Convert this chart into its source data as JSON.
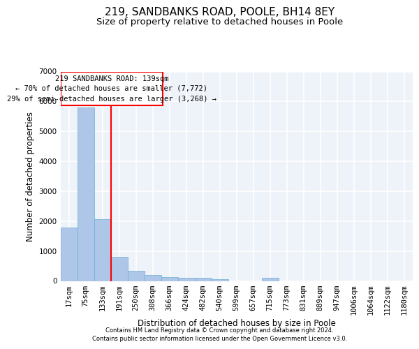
{
  "title": "219, SANDBANKS ROAD, POOLE, BH14 8EY",
  "subtitle": "Size of property relative to detached houses in Poole",
  "xlabel": "Distribution of detached houses by size in Poole",
  "ylabel": "Number of detached properties",
  "bar_color": "#aec6e8",
  "bar_edge_color": "#6baed6",
  "categories": [
    "17sqm",
    "75sqm",
    "133sqm",
    "191sqm",
    "250sqm",
    "308sqm",
    "366sqm",
    "424sqm",
    "482sqm",
    "540sqm",
    "599sqm",
    "657sqm",
    "715sqm",
    "773sqm",
    "831sqm",
    "889sqm",
    "947sqm",
    "1006sqm",
    "1064sqm",
    "1122sqm",
    "1180sqm"
  ],
  "values": [
    1780,
    5800,
    2060,
    800,
    340,
    200,
    130,
    115,
    100,
    65,
    0,
    0,
    95,
    0,
    0,
    0,
    0,
    0,
    0,
    0,
    0
  ],
  "ylim": [
    0,
    7000
  ],
  "yticks": [
    0,
    1000,
    2000,
    3000,
    4000,
    5000,
    6000,
    7000
  ],
  "annotation_title": "219 SANDBANKS ROAD: 139sqm",
  "annotation_line1": "← 70% of detached houses are smaller (7,772)",
  "annotation_line2": "29% of semi-detached houses are larger (3,268) →",
  "vline_x": 2.5,
  "footer1": "Contains HM Land Registry data © Crown copyright and database right 2024.",
  "footer2": "Contains public sector information licensed under the Open Government Licence v3.0.",
  "bg_color": "#eef2f9",
  "grid_color": "#ffffff",
  "title_fontsize": 11,
  "subtitle_fontsize": 9.5,
  "label_fontsize": 8.5,
  "tick_fontsize": 7.5,
  "footer_fontsize": 6.0,
  "annot_fontsize": 7.5
}
